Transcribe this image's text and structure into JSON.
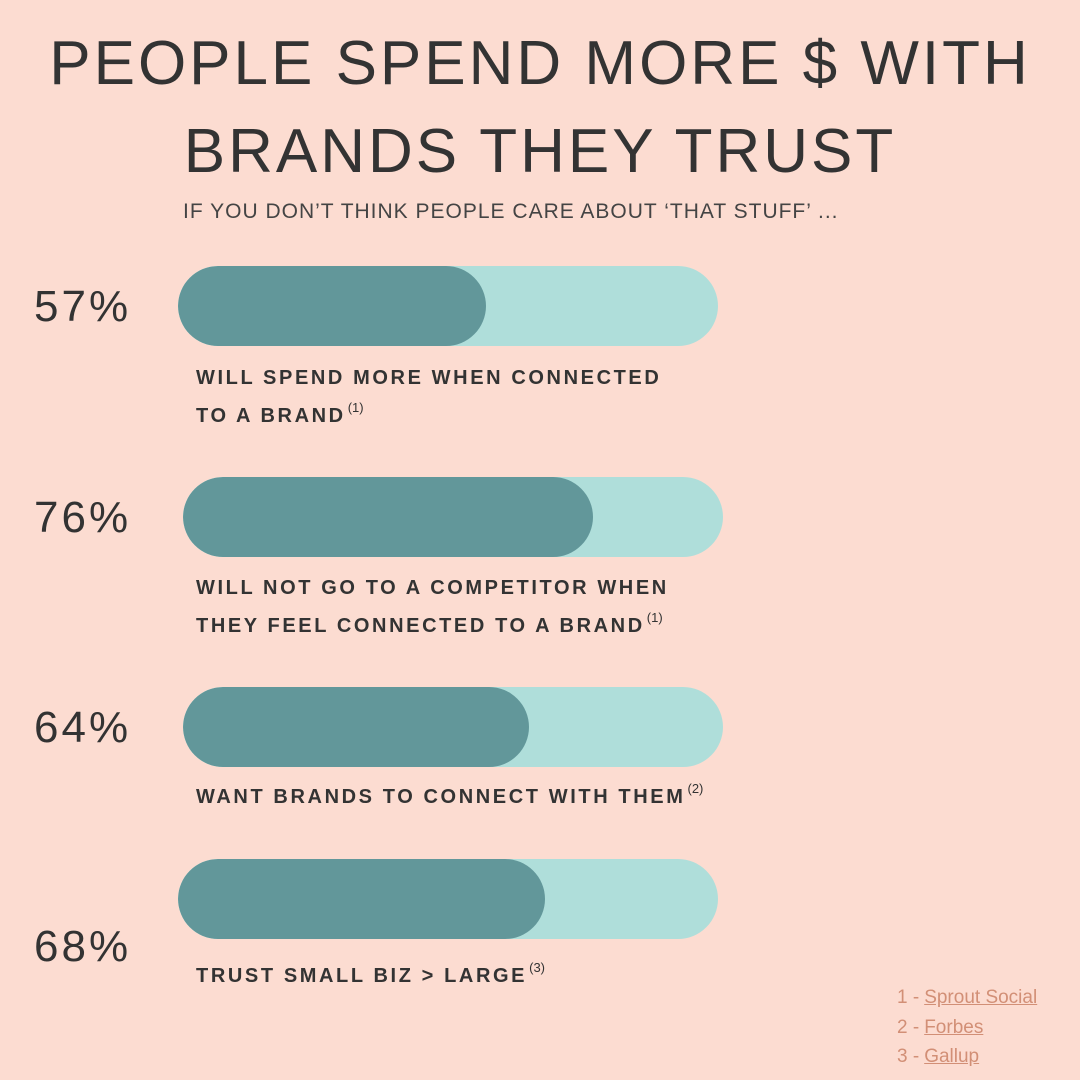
{
  "chart_data": {
    "type": "bar",
    "title": [
      "PEOPLE SPEND MORE $ WITH",
      "BRANDS THEY TRUST"
    ],
    "subtitle": "IF YOU DON’T THINK PEOPLE CARE ABOUT ‘THAT STUFF’ ...",
    "categories": [
      "WILL SPEND MORE WHEN CONNECTED TO A BRAND",
      "WILL NOT GO TO A COMPETITOR WHEN THEY FEEL CONNECTED TO A BRAND",
      "WANT BRANDS TO CONNECT WITH THEM",
      "TRUST SMALL BIZ > LARGE"
    ],
    "footnotes": [
      "(1)",
      "(1)",
      "(2)",
      "(3)"
    ],
    "values": [
      57,
      76,
      64,
      68
    ],
    "value_labels": [
      "57%",
      "76%",
      "64%",
      "68%"
    ],
    "xlim": [
      0,
      100
    ],
    "color": "#62979a",
    "track_color": "#afdeda",
    "sources": [
      {
        "prefix": "1 -",
        "name": "Sprout Social"
      },
      {
        "prefix": "2 -",
        "name": "Forbes"
      },
      {
        "prefix": "3 -",
        "name": "Gallup"
      }
    ]
  }
}
